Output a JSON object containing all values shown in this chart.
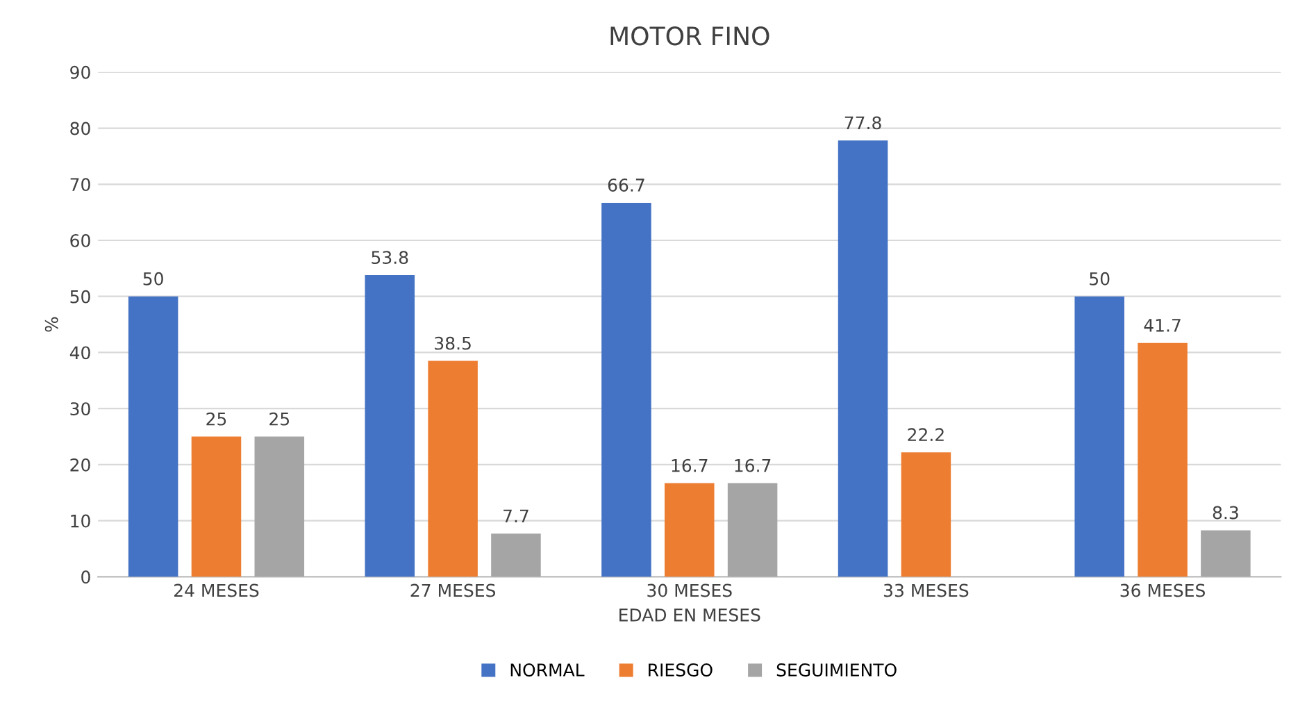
{
  "chart_data": {
    "type": "bar",
    "title": "MOTOR FINO",
    "xlabel": "EDAD EN MESES",
    "ylabel": "%",
    "categories": [
      "24 MESES",
      "27 MESES",
      "30 MESES",
      "33 MESES",
      "36 MESES"
    ],
    "series": [
      {
        "name": "NORMAL",
        "color": "#4472c4",
        "values": [
          50,
          53.8,
          66.7,
          77.8,
          50
        ]
      },
      {
        "name": "RIESGO",
        "color": "#ed7d31",
        "values": [
          25,
          38.5,
          16.7,
          22.2,
          41.7
        ]
      },
      {
        "name": "SEGUIMIENTO",
        "color": "#a5a5a5",
        "values": [
          25,
          7.7,
          16.7,
          null,
          8.3
        ]
      }
    ],
    "ylim": [
      0,
      90
    ],
    "yticks": [
      0,
      10,
      20,
      30,
      40,
      50,
      60,
      70,
      80,
      90
    ],
    "grid": "y",
    "legend": "bottom",
    "data_labels": true
  }
}
